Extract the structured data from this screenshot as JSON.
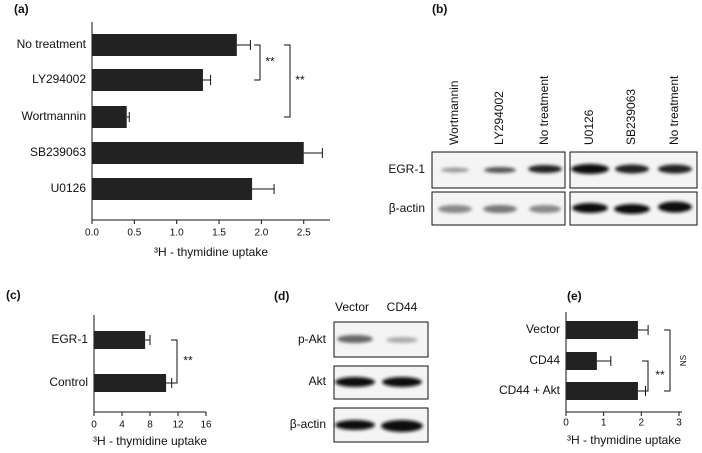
{
  "chart_data": [
    {
      "type": "barh",
      "title": "(a)",
      "categories": [
        "No treatment",
        "LY294002",
        "Wortmannin",
        "SB239063",
        "U0126"
      ],
      "values": [
        1.71,
        1.31,
        0.41,
        2.5,
        1.89
      ],
      "errors": [
        0.16,
        0.09,
        0.03,
        0.22,
        0.26
      ],
      "color": "#222222",
      "xlim": [
        0,
        2.81
      ],
      "xticks": [
        {
          "value": 0,
          "label": "0.0"
        },
        0.5,
        {
          "value": 1,
          "label": "1.0"
        },
        1.5,
        {
          "value": 2,
          "label": "2.0"
        },
        2.5
      ],
      "xlabel": "³H - thymidine uptake",
      "annotations": [
        "**",
        "**"
      ]
    },
    {
      "type": "barh",
      "title": "(c)",
      "categories": [
        "EGR-1",
        "Control"
      ],
      "values": [
        7.3,
        10.3
      ],
      "errors": [
        0.7,
        0.8
      ],
      "color": "#222222",
      "xlim": [
        0,
        16
      ],
      "xticks": [
        0,
        4,
        8,
        12,
        16
      ],
      "xlabel": "³H - thymidine uptake",
      "annotations": [
        "**"
      ]
    },
    {
      "type": "barh",
      "title": "(e)",
      "categories": [
        "Vector",
        "CD44",
        "CD44 + Akt"
      ],
      "values": [
        1.91,
        0.82,
        1.91
      ],
      "errors": [
        0.27,
        0.37,
        0.2
      ],
      "color": "#222222",
      "xlim": [
        0,
        3.08
      ],
      "xticks": [
        0,
        1,
        2,
        3
      ],
      "xlabel": "³H - thymidine uptake",
      "annotations": [
        "NS",
        "**"
      ]
    }
  ],
  "blots": [
    {
      "title": "(b)",
      "columns": [
        "Wortmannin",
        "LY294002",
        "No treatment",
        "U0126",
        "SB239063",
        "No treatment"
      ],
      "rows": [
        "EGR-1",
        "β-actin"
      ]
    },
    {
      "title": "(d)",
      "columns": [
        "Vector",
        "CD44"
      ],
      "rows": [
        "p-Akt",
        "Akt",
        "β-actin"
      ]
    }
  ]
}
